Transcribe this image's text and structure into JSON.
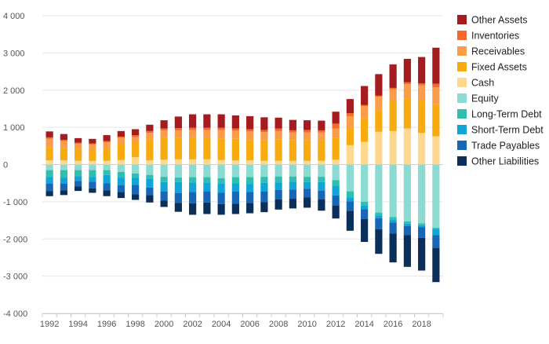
{
  "chart_data": {
    "type": "bar",
    "stacked": true,
    "ylim": [
      -4000,
      4000
    ],
    "yticks": [
      4000,
      3000,
      2000,
      1000,
      0,
      -1000,
      -2000,
      -3000,
      -4000
    ],
    "ytick_labels": [
      "4 000",
      "3 000",
      "2 000",
      "1 000",
      "0",
      "-1 000",
      "-2 000",
      "-3 000",
      "-4 000"
    ],
    "grid": true,
    "legend_position": "right",
    "categories": [
      "1992",
      "1993",
      "1994",
      "1995",
      "1996",
      "1997",
      "1998",
      "1999",
      "2000",
      "2001",
      "2002",
      "2003",
      "2004",
      "2005",
      "2006",
      "2007",
      "2008",
      "2009",
      "2010",
      "2011",
      "2012",
      "2013",
      "2014",
      "2015",
      "2016",
      "2017",
      "2018",
      "2019"
    ],
    "xtick_labels": [
      "1992",
      "1994",
      "1996",
      "1998",
      "2000",
      "2002",
      "2004",
      "2006",
      "2008",
      "2010",
      "2012",
      "2014",
      "2016",
      "2018"
    ],
    "series": [
      {
        "name": "Cash",
        "color": "#fdd88e",
        "values": [
          110,
          110,
          100,
          100,
          100,
          120,
          200,
          110,
          130,
          140,
          140,
          140,
          120,
          110,
          110,
          100,
          100,
          100,
          100,
          100,
          130,
          520,
          610,
          880,
          900,
          970,
          850,
          760
        ]
      },
      {
        "name": "Fixed Assets",
        "color": "#f7ab0e",
        "values": [
          350,
          340,
          320,
          300,
          320,
          440,
          390,
          560,
          590,
          580,
          590,
          590,
          580,
          580,
          550,
          550,
          580,
          560,
          560,
          560,
          580,
          450,
          640,
          580,
          810,
          810,
          870,
          860
        ]
      },
      {
        "name": "Receivables",
        "color": "#f99d48",
        "values": [
          230,
          180,
          140,
          140,
          180,
          160,
          150,
          180,
          200,
          200,
          200,
          200,
          230,
          220,
          230,
          220,
          220,
          200,
          200,
          200,
          260,
          330,
          320,
          360,
          310,
          380,
          410,
          460
        ]
      },
      {
        "name": "Inventories",
        "color": "#f6662f",
        "values": [
          40,
          30,
          30,
          30,
          30,
          30,
          50,
          50,
          50,
          60,
          60,
          60,
          60,
          60,
          60,
          60,
          70,
          60,
          70,
          60,
          130,
          80,
          30,
          30,
          40,
          50,
          50,
          90
        ]
      },
      {
        "name": "Other Assets",
        "color": "#a51c20",
        "values": [
          160,
          160,
          120,
          120,
          160,
          150,
          160,
          170,
          220,
          310,
          360,
          360,
          360,
          350,
          350,
          340,
          290,
          280,
          260,
          260,
          320,
          380,
          510,
          580,
          630,
          630,
          710,
          970
        ]
      },
      {
        "name": "Equity",
        "color": "#8cdbd2",
        "values": [
          -150,
          -150,
          -150,
          -150,
          -150,
          -200,
          -240,
          -280,
          -330,
          -350,
          -340,
          -340,
          -370,
          -340,
          -340,
          -330,
          -320,
          -320,
          -330,
          -330,
          -420,
          -720,
          -1000,
          -1290,
          -1410,
          -1530,
          -1580,
          -1700
        ]
      },
      {
        "name": "Long-Term Debt",
        "color": "#30bfaf",
        "values": [
          -180,
          -200,
          -160,
          -180,
          -130,
          -150,
          -110,
          -110,
          -140,
          -120,
          -140,
          -140,
          -140,
          -160,
          -180,
          -160,
          -160,
          -140,
          -140,
          -140,
          -160,
          -160,
          -100,
          -80,
          -80,
          -60,
          -50,
          -40
        ]
      },
      {
        "name": "Short-Term Debt",
        "color": "#0fa5d6",
        "values": [
          -180,
          -160,
          -130,
          -130,
          -220,
          -210,
          -200,
          -230,
          -250,
          -300,
          -260,
          -240,
          -250,
          -220,
          -220,
          -230,
          -200,
          -210,
          -180,
          -230,
          -250,
          -110,
          -100,
          -70,
          -70,
          -60,
          -50,
          -160
        ]
      },
      {
        "name": "Trade Payables",
        "color": "#1667b7",
        "values": [
          -200,
          -180,
          -150,
          -180,
          -190,
          -180,
          -250,
          -200,
          -250,
          -260,
          -300,
          -300,
          -300,
          -330,
          -290,
          -290,
          -260,
          -250,
          -230,
          -240,
          -270,
          -250,
          -260,
          -300,
          -290,
          -250,
          -290,
          -340
        ]
      },
      {
        "name": "Other Liabilities",
        "color": "#0a2f5b",
        "values": [
          -140,
          -130,
          -120,
          -120,
          -160,
          -160,
          -150,
          -200,
          -170,
          -240,
          -310,
          -310,
          -290,
          -280,
          -280,
          -270,
          -270,
          -260,
          -280,
          -300,
          -350,
          -540,
          -620,
          -660,
          -780,
          -850,
          -880,
          -920
        ]
      }
    ],
    "legend_order": [
      "Other Assets",
      "Inventories",
      "Receivables",
      "Fixed Assets",
      "Cash",
      "Equity",
      "Long-Term Debt",
      "Short-Term Debt",
      "Trade Payables",
      "Other Liabilities"
    ]
  },
  "colors": {
    "grid": "#e6e6e6",
    "axis": "#cccccc",
    "zero_line": "#cfcfcf"
  }
}
